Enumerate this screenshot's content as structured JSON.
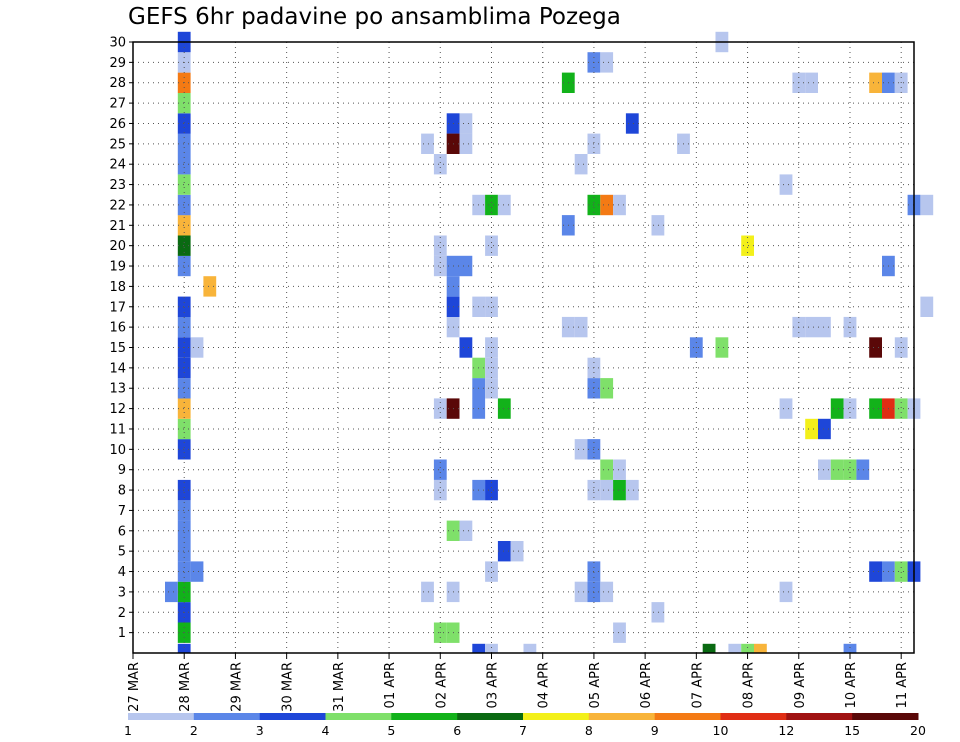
{
  "chart_data": {
    "type": "heatmap",
    "title": "GEFS 6hr padavine po ansamblima Pozega",
    "x_ticks": [
      "27 MAR",
      "28 MAR",
      "29 MAR",
      "30 MAR",
      "31 MAR",
      "01 APR",
      "02 APR",
      "03 APR",
      "04 APR",
      "05 APR",
      "06 APR",
      "07 APR",
      "08 APR",
      "09 APR",
      "10 APR",
      "11 APR"
    ],
    "y_ticks": [
      1,
      2,
      3,
      4,
      5,
      6,
      7,
      8,
      9,
      10,
      11,
      12,
      13,
      14,
      15,
      16,
      17,
      18,
      19,
      20,
      21,
      22,
      23,
      24,
      25,
      26,
      27,
      28,
      29,
      30
    ],
    "xlim_days": [
      0,
      15.25
    ],
    "ylim": [
      0,
      30
    ],
    "grid": true,
    "colorbar": {
      "labels": [
        "1",
        "2",
        "3",
        "4",
        "5",
        "6",
        "7",
        "8",
        "9",
        "10",
        "12",
        "15",
        "20"
      ],
      "colors": [
        "#b7c6ee",
        "#5b86e8",
        "#1e46d8",
        "#7fe06a",
        "#12b21a",
        "#0a6a12",
        "#f3f01a",
        "#f8b43a",
        "#f47a14",
        "#e02d14",
        "#a01212",
        "#5a0808"
      ]
    },
    "cells": [
      [
        1,
        0,
        2
      ],
      [
        1,
        1,
        4
      ],
      [
        1,
        2,
        2
      ],
      [
        1,
        3,
        4
      ],
      [
        1,
        4,
        1
      ],
      [
        1,
        5,
        1
      ],
      [
        1,
        6,
        1
      ],
      [
        1,
        7,
        1
      ],
      [
        1,
        8,
        2
      ],
      [
        1,
        10,
        2
      ],
      [
        1,
        11,
        3
      ],
      [
        1,
        12,
        7
      ],
      [
        1,
        13,
        1
      ],
      [
        1,
        14,
        2
      ],
      [
        1,
        15,
        2
      ],
      [
        1,
        16,
        1
      ],
      [
        1,
        17,
        2
      ],
      [
        1,
        19,
        1
      ],
      [
        1,
        20,
        5
      ],
      [
        1,
        21,
        7
      ],
      [
        1,
        22,
        1
      ],
      [
        1,
        23,
        3
      ],
      [
        1,
        24,
        1
      ],
      [
        1,
        25,
        1
      ],
      [
        1,
        26,
        2
      ],
      [
        1,
        27,
        3
      ],
      [
        1,
        28,
        8
      ],
      [
        1,
        29,
        0
      ],
      [
        1,
        30,
        2
      ],
      [
        0.75,
        3,
        1
      ],
      [
        1.25,
        4,
        1
      ],
      [
        1.25,
        15,
        0
      ],
      [
        1.5,
        18,
        7
      ],
      [
        5.75,
        3,
        0
      ],
      [
        5.75,
        25,
        0
      ],
      [
        6,
        1,
        3
      ],
      [
        6,
        8,
        0
      ],
      [
        6,
        9,
        1
      ],
      [
        6,
        12,
        0
      ],
      [
        6,
        19,
        0
      ],
      [
        6,
        20,
        0
      ],
      [
        6,
        24,
        0
      ],
      [
        6.25,
        1,
        3
      ],
      [
        6.25,
        3,
        0
      ],
      [
        6.25,
        6,
        3
      ],
      [
        6.25,
        12,
        11
      ],
      [
        6.25,
        16,
        0
      ],
      [
        6.25,
        17,
        2
      ],
      [
        6.25,
        18,
        1
      ],
      [
        6.25,
        19,
        1
      ],
      [
        6.25,
        26,
        2
      ],
      [
        6.25,
        25,
        11
      ],
      [
        6.5,
        6,
        0
      ],
      [
        6.5,
        15,
        2
      ],
      [
        6.5,
        19,
        1
      ],
      [
        6.5,
        25,
        0
      ],
      [
        6.5,
        26,
        0
      ],
      [
        6.75,
        0,
        2
      ],
      [
        6.75,
        8,
        1
      ],
      [
        6.75,
        12,
        1
      ],
      [
        6.75,
        13,
        1
      ],
      [
        6.75,
        14,
        3
      ],
      [
        6.75,
        17,
        0
      ],
      [
        6.75,
        22,
        0
      ],
      [
        7,
        0,
        0
      ],
      [
        7,
        4,
        0
      ],
      [
        7,
        8,
        2
      ],
      [
        7,
        13,
        0
      ],
      [
        7,
        14,
        0
      ],
      [
        7,
        15,
        0
      ],
      [
        7,
        17,
        0
      ],
      [
        7,
        20,
        0
      ],
      [
        7,
        22,
        4
      ],
      [
        7.25,
        5,
        2
      ],
      [
        7.25,
        12,
        4
      ],
      [
        7.25,
        22,
        0
      ],
      [
        7.5,
        5,
        0
      ],
      [
        7.75,
        0,
        0
      ],
      [
        8.5,
        16,
        0
      ],
      [
        8.5,
        21,
        1
      ],
      [
        8.5,
        28,
        4
      ],
      [
        8.75,
        3,
        0
      ],
      [
        8.75,
        10,
        0
      ],
      [
        8.75,
        16,
        0
      ],
      [
        8.75,
        24,
        0
      ],
      [
        9,
        3,
        1
      ],
      [
        9,
        8,
        0
      ],
      [
        9,
        10,
        1
      ],
      [
        9,
        13,
        1
      ],
      [
        9,
        14,
        0
      ],
      [
        9,
        25,
        0
      ],
      [
        9,
        22,
        4
      ],
      [
        9,
        29,
        1
      ],
      [
        9.25,
        3,
        0
      ],
      [
        9,
        4,
        1
      ],
      [
        9.25,
        8,
        0
      ],
      [
        9.25,
        9,
        3
      ],
      [
        9.25,
        13,
        3
      ],
      [
        9.25,
        22,
        8
      ],
      [
        9.25,
        29,
        0
      ],
      [
        9.5,
        1,
        0
      ],
      [
        9.5,
        8,
        4
      ],
      [
        9.5,
        9,
        0
      ],
      [
        9.5,
        22,
        0
      ],
      [
        9.75,
        8,
        0
      ],
      [
        9.75,
        26,
        2
      ],
      [
        10.25,
        2,
        0
      ],
      [
        10.25,
        21,
        0
      ],
      [
        10.75,
        25,
        0
      ],
      [
        11,
        15,
        1
      ],
      [
        11.25,
        0,
        5
      ],
      [
        11.5,
        15,
        3
      ],
      [
        11.5,
        30,
        0
      ],
      [
        11.75,
        0,
        0
      ],
      [
        12,
        0,
        3
      ],
      [
        12,
        20,
        6
      ],
      [
        12.25,
        0,
        7
      ],
      [
        12.75,
        3,
        0
      ],
      [
        12.75,
        12,
        0
      ],
      [
        12.75,
        23,
        0
      ],
      [
        13,
        16,
        0
      ],
      [
        13,
        28,
        0
      ],
      [
        13.25,
        11,
        6
      ],
      [
        13.25,
        16,
        0
      ],
      [
        13.25,
        28,
        0
      ],
      [
        13.5,
        9,
        0
      ],
      [
        13.5,
        11,
        2
      ],
      [
        13.5,
        16,
        0
      ],
      [
        13.75,
        9,
        3
      ],
      [
        13.75,
        12,
        4
      ],
      [
        14,
        0,
        1
      ],
      [
        14,
        9,
        3
      ],
      [
        14,
        12,
        0
      ],
      [
        14,
        16,
        0
      ],
      [
        14.25,
        9,
        1
      ],
      [
        14.5,
        4,
        2
      ],
      [
        14.5,
        12,
        4
      ],
      [
        14.5,
        15,
        11
      ],
      [
        14.5,
        28,
        7
      ],
      [
        14.75,
        4,
        1
      ],
      [
        14.75,
        12,
        9
      ],
      [
        14.75,
        19,
        1
      ],
      [
        14.75,
        28,
        1
      ],
      [
        15,
        4,
        3
      ],
      [
        15,
        12,
        3
      ],
      [
        15,
        15,
        0
      ],
      [
        15,
        28,
        0
      ],
      [
        15.25,
        4,
        2
      ],
      [
        15.25,
        12,
        0
      ],
      [
        15.25,
        22,
        1
      ],
      [
        15.5,
        17,
        0
      ],
      [
        15.5,
        22,
        0
      ]
    ]
  }
}
